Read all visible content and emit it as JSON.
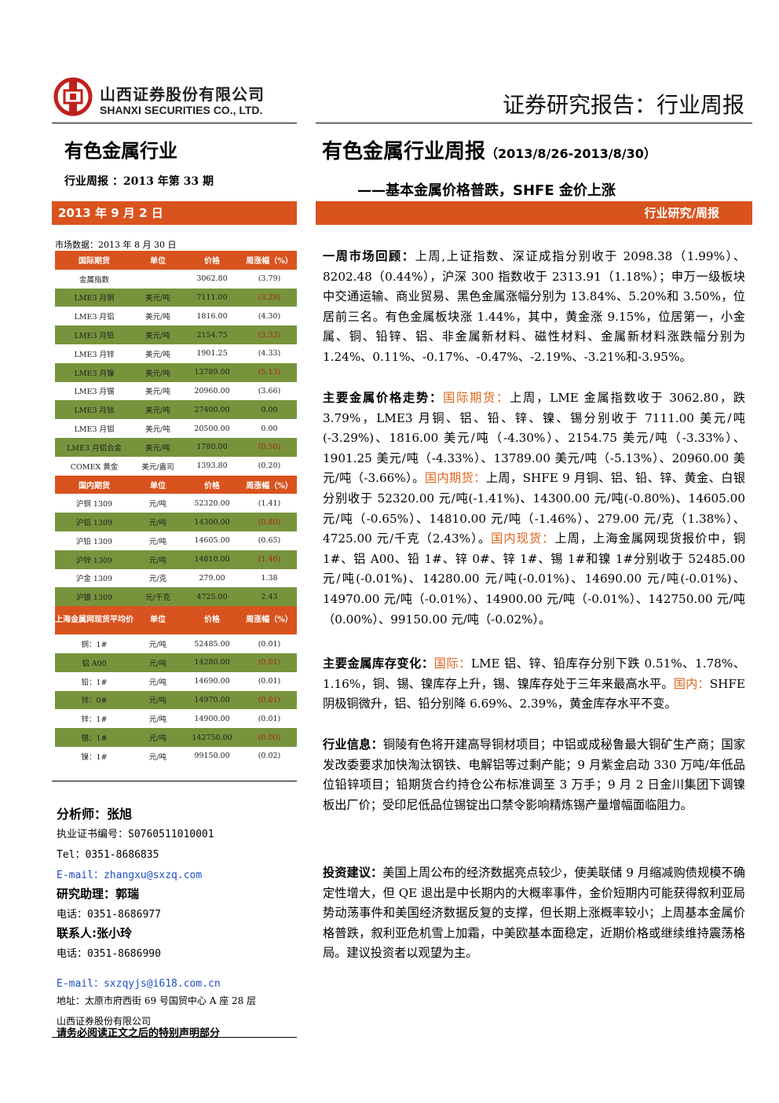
{
  "header": {
    "company_cn": "山西证券股份有限公司",
    "company_en": "SHANXI SECURITIES CO., LTD.",
    "report_type": "证券研究报告：行业周报"
  },
  "left": {
    "industry": "有色金属行业",
    "issue": "行业周报 ：2013 年第 33 期",
    "date": "2013 年 9 月 2 日",
    "market_label": "市场数据：2013 年 8 月 30 日"
  },
  "right": {
    "title": "有色金属行业周报",
    "range": "（2013/8/26-2013/8/30）",
    "subtitle": "——基本金属价格普跌，SHFE 金价上涨",
    "bar_label": "行业研究/周报"
  },
  "table": {
    "sections": [
      {
        "header": [
          "国际期货",
          "单位",
          "价格",
          "周涨幅（%）"
        ],
        "rows": [
          [
            "金属指数",
            "",
            "3062.80",
            "(3.79)"
          ],
          [
            "LME3 月铜",
            "美元/吨",
            "7111.00",
            "(3.29)"
          ],
          [
            "LME3 月铝",
            "美元/吨",
            "1816.00",
            "(4.30)"
          ],
          [
            "LME3 月铅",
            "美元/吨",
            "2154.75",
            "(3.33)"
          ],
          [
            "LME3 月锌",
            "美元/吨",
            "1901.25",
            "(4.33)"
          ],
          [
            "LME3 月镍",
            "美元/吨",
            "13789.00",
            "(5.13)"
          ],
          [
            "LME3 月锡",
            "美元/吨",
            "20960.00",
            "(3.66)"
          ],
          [
            "LME3 月钴",
            "美元/吨",
            "27400.00",
            "0.00"
          ],
          [
            "LME3 月钼",
            "美元/吨",
            "20500.00",
            "0.00"
          ],
          [
            "LME3 月铝合金",
            "美元/吨",
            "1780.00",
            "(0.50)"
          ],
          [
            "COMEX 黄金",
            "美元/盎司",
            "1393.80",
            "(0.20)"
          ]
        ]
      },
      {
        "header": [
          "国内期货",
          "单位",
          "价格",
          "周涨幅（%）"
        ],
        "rows": [
          [
            "沪铜 1309",
            "元/吨",
            "52320.00",
            "(1.41)"
          ],
          [
            "沪铝 1309",
            "元/吨",
            "14300.00",
            "(0.80)"
          ],
          [
            "沪铅 1309",
            "元/吨",
            "14605.00",
            "(0.65)"
          ],
          [
            "沪锌 1309",
            "元/吨",
            "14810.00",
            "(1.46)"
          ],
          [
            "沪金 1309",
            "元/克",
            "279.00",
            "1.38"
          ],
          [
            "沪银 1309",
            "元/千克",
            "4725.00",
            "2.43"
          ]
        ]
      },
      {
        "header": [
          "上海金属网现货平均价",
          "单位",
          "价格",
          "周涨幅（%）"
        ],
        "rows": [
          [
            "铜：1#",
            "元/吨",
            "52485.00",
            "(0.01)"
          ],
          [
            "铝 A00",
            "元/吨",
            "14280.00",
            "(0.01)"
          ],
          [
            "铅：1#",
            "元/吨",
            "14690.00",
            "(0.01)"
          ],
          [
            "锌：0#",
            "元/吨",
            "14970.00",
            "(0.01)"
          ],
          [
            "锌：1#",
            "元/吨",
            "14900.00",
            "(0.01)"
          ],
          [
            "锡：1#",
            "元/吨",
            "142750.00",
            "(0.00)"
          ],
          [
            "镍：1#",
            "元/吨",
            "99150.00",
            "(0.02)"
          ]
        ]
      }
    ]
  },
  "contacts": {
    "analyst": "分析师：张旭",
    "cert": "执业证书编号：S0760511010001",
    "tel": "Tel：0351-8686835",
    "email1": "E-mail：zhangxu@sxzq.com",
    "assistant": "研究助理：郭瑞",
    "assistant_tel": "电话：0351-8686977",
    "contact": "联系人:张小玲",
    "contact_tel": "电话：0351-8686990",
    "email2": "E-mail：sxzqyjs@i618.com.cn",
    "address": "地址：太原市府西街 69 号国贸中心 A 座 28 层",
    "company": "山西证券股份有限公司",
    "disclaimer": "请务必阅读正文之后的特别声明部分"
  },
  "paragraphs": {
    "p1_title": "一周市场回顾：",
    "p1_text": "上周,上证指数、深证成指分别收于 2098.38（1.99%）、8202.48（0.44%），沪深 300 指数收于 2313.91（1.18%）；申万一级板块中交通运输、商业贸易、黑色金属涨幅分别为 13.84%、5.20%和 3.50%，位居前三名。有色金属板块涨 1.44%，其中，黄金涨 9.15%，位居第一，小金属、铜、铅锌、铝、非金属新材料、磁性材料、金属新材料涨跌幅分别为 1.24%、0.11%、-0.17%、-0.47%、-2.19%、-3.21%和-3.95%。",
    "p2_title": "主要金属价格走势：",
    "p2_hl1": "国际期货：",
    "p2_t1": "上周，LME 金属指数收于 3062.80，跌 3.79%，LME3 月铜、铝、铅、锌、镍、锡分别收于 7111.00 美元/吨(-3.29%)、1816.00 美元/吨（-4.30%）、2154.75 美元/吨（-3.33%）、1901.25 美元/吨（-4.33%）、13789.00 美元/吨（-5.13%）、20960.00 美元/吨（-3.66%）。",
    "p2_hl2": "国内期货：",
    "p2_t2": "上周，SHFE 9 月铜、铝、铅、锌、黄金、白银分别收于 52320.00 元/吨(-1.41%)、14300.00 元/吨(-0.80%)、14605.00 元/吨（-0.65%）、14810.00 元/吨（-1.46%）、279.00 元/克（1.38%）、4725.00 元/千克（2.43%）。",
    "p2_hl3": "国内现货：",
    "p2_t3": "上周，上海金属网现货报价中，铜 1#、铝 A00、铅 1#、锌 0#、锌 1#、锡 1#和镍 1#分别收于 52485.00 元/吨(-0.01%)、14280.00 元/吨(-0.01%)、14690.00 元/吨(-0.01%)、14970.00 元/吨（-0.01%）、14900.00 元/吨（-0.01%）、142750.00 元/吨（0.00%）、99150.00 元/吨（-0.02%）。",
    "p3_title": "主要金属库存变化：",
    "p3_hl1": "国际：",
    "p3_t1": "LME 铝、锌、铅库存分别下跌 0.51%、1.78%、1.16%，铜、锡、镍库存上升，锡、镍库存处于三年来最高水平。",
    "p3_hl2": "国内：",
    "p3_t2": "SHFE 阴极铜微升，铝、铅分别降 6.69%、2.39%，黄金库存水平不变。",
    "p4_title": "行业信息：",
    "p4_text": "铜陵有色将开建高导铜材项目；中铝或成秘鲁最大铜矿生产商；国家发改委要求加快淘汰钢铁、电解铝等过剩产能；9 月紫金启动 330 万吨/年低品位铅锌项目；铅期货合约持仓公布标准调至 3 万手；9 月 2 日金川集团下调镍板出厂价；受印尼低品位锡锭出口禁令影响精炼锡产量增幅面临阻力。",
    "p5_title": "投资建议：",
    "p5_text": "美国上周公布的经济数据亮点较少，使美联储 9 月缩减购债规模不确定性增大，但 QE 退出是中长期内的大概率事件，金价短期内可能获得叙利亚局势动荡事件和美国经济数据反复的支撑，但长期上涨概率较小；上周基本金属价格普跌，叙利亚危机雪上加霜，中美欧基本面稳定，近期价格或继续维持震荡格局。建议投资者以观望为主。"
  },
  "colors": {
    "accent": "#d9531e",
    "green_row": "#77943c",
    "highlight": "#e0651e",
    "negative": "#c0392b"
  }
}
